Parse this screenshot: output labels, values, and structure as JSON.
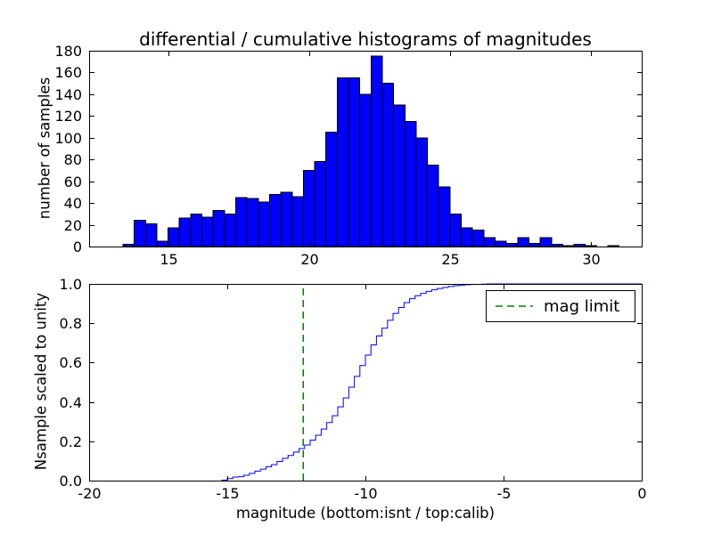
{
  "figure": {
    "title": "differential / cumulative histograms of magnitudes",
    "background": "#ffffff"
  },
  "chart_data": [
    {
      "type": "bar",
      "name": "differential-histogram",
      "title": "differential / cumulative histograms of magnitudes",
      "ylabel": "number of samples",
      "xlabel": "",
      "bar_color": "#0000ff",
      "bar_edge_color": "#000000",
      "grid": false,
      "xlim": [
        12.2,
        31.8
      ],
      "ylim": [
        0,
        180
      ],
      "xticks": [
        15,
        20,
        25,
        30
      ],
      "xtick_labels": [
        "15",
        "20",
        "25",
        "30"
      ],
      "yticks": [
        0,
        20,
        40,
        60,
        80,
        100,
        120,
        140,
        160,
        180
      ],
      "ytick_labels": [
        "0",
        "20",
        "40",
        "60",
        "80",
        "100",
        "120",
        "140",
        "160",
        "180"
      ],
      "bin_start": 13.4,
      "bin_width": 0.4,
      "counts": [
        2,
        24,
        21,
        5,
        17,
        26,
        30,
        27,
        33,
        30,
        45,
        44,
        41,
        48,
        50,
        46,
        70,
        78,
        105,
        155,
        155,
        140,
        175,
        150,
        130,
        115,
        100,
        75,
        55,
        30,
        17,
        15,
        8,
        5,
        3,
        8,
        3,
        8,
        2,
        1,
        2,
        1,
        0,
        1
      ]
    },
    {
      "type": "line",
      "name": "cumulative-histogram",
      "ylabel": "Nsample scaled to unity",
      "xlabel": "magnitude (bottom:isnt / top:calib)",
      "line_color": "#0000ff",
      "grid": false,
      "legend_position": "upper right",
      "xlim": [
        -20,
        0
      ],
      "ylim": [
        0,
        1.0
      ],
      "xticks": [
        -20,
        -15,
        -10,
        -5,
        0
      ],
      "xtick_labels": [
        "-20",
        "-15",
        "-10",
        "-5",
        "0"
      ],
      "yticks": [
        0,
        0.2,
        0.4,
        0.6,
        0.8,
        1.0
      ],
      "ytick_labels": [
        "0.0",
        "0.2",
        "0.4",
        "0.6",
        "0.8",
        "1.0"
      ],
      "bin_start": -15.2,
      "bin_width": 0.2,
      "cum": [
        0.002,
        0.01,
        0.018,
        0.02,
        0.027,
        0.037,
        0.048,
        0.058,
        0.07,
        0.081,
        0.097,
        0.113,
        0.128,
        0.145,
        0.163,
        0.181,
        0.206,
        0.231,
        0.262,
        0.295,
        0.33,
        0.375,
        0.42,
        0.475,
        0.53,
        0.585,
        0.638,
        0.69,
        0.735,
        0.775,
        0.815,
        0.85,
        0.88,
        0.905,
        0.925,
        0.94,
        0.952,
        0.962,
        0.97,
        0.977,
        0.982,
        0.987,
        0.991,
        0.994,
        0.996,
        0.997,
        0.998,
        0.999,
        1.0
      ],
      "mag_limit": {
        "x": -12.25,
        "color": "#008000",
        "label": "mag limit",
        "style": "dashed"
      }
    }
  ]
}
